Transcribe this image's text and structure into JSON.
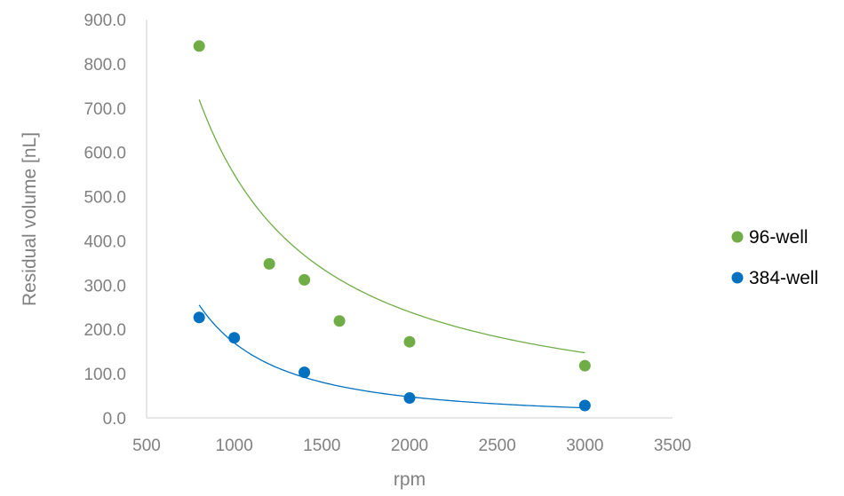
{
  "chart_data": {
    "type": "scatter",
    "title": "",
    "xlabel": "rpm",
    "ylabel": "Residual volume [nL]",
    "xlim": [
      500,
      3500
    ],
    "ylim": [
      0,
      900
    ],
    "x_ticks": [
      500,
      1000,
      1500,
      2000,
      2500,
      3000,
      3500
    ],
    "x_tick_labels": [
      "500",
      "1000",
      "1500",
      "2000",
      "2500",
      "3000",
      "3500"
    ],
    "y_ticks": [
      0,
      100,
      200,
      300,
      400,
      500,
      600,
      700,
      800,
      900
    ],
    "y_tick_labels": [
      "0.0",
      "100.0",
      "200.0",
      "300.0",
      "400.0",
      "500.0",
      "600.0",
      "700.0",
      "800.0",
      "900.0"
    ],
    "grid": false,
    "legend_position": "right",
    "series": [
      {
        "name": "96-well",
        "color": "#70ad47",
        "points": [
          {
            "x": 800,
            "y": 840
          },
          {
            "x": 1200,
            "y": 348
          },
          {
            "x": 1400,
            "y": 312
          },
          {
            "x": 1600,
            "y": 219
          },
          {
            "x": 2000,
            "y": 172
          },
          {
            "x": 3000,
            "y": 118
          }
        ],
        "trendline": {
          "type": "power",
          "coefficient": 2190000,
          "exponent": -1.2,
          "x_range": [
            800,
            3000
          ]
        }
      },
      {
        "name": "384-well",
        "color": "#0070c0",
        "points": [
          {
            "x": 800,
            "y": 227
          },
          {
            "x": 1000,
            "y": 181
          },
          {
            "x": 1400,
            "y": 103
          },
          {
            "x": 2000,
            "y": 45
          },
          {
            "x": 3000,
            "y": 28
          }
        ],
        "trendline": {
          "type": "power",
          "coefficient": 52400000,
          "exponent": -1.83,
          "x_range": [
            800,
            3000
          ]
        }
      }
    ]
  }
}
